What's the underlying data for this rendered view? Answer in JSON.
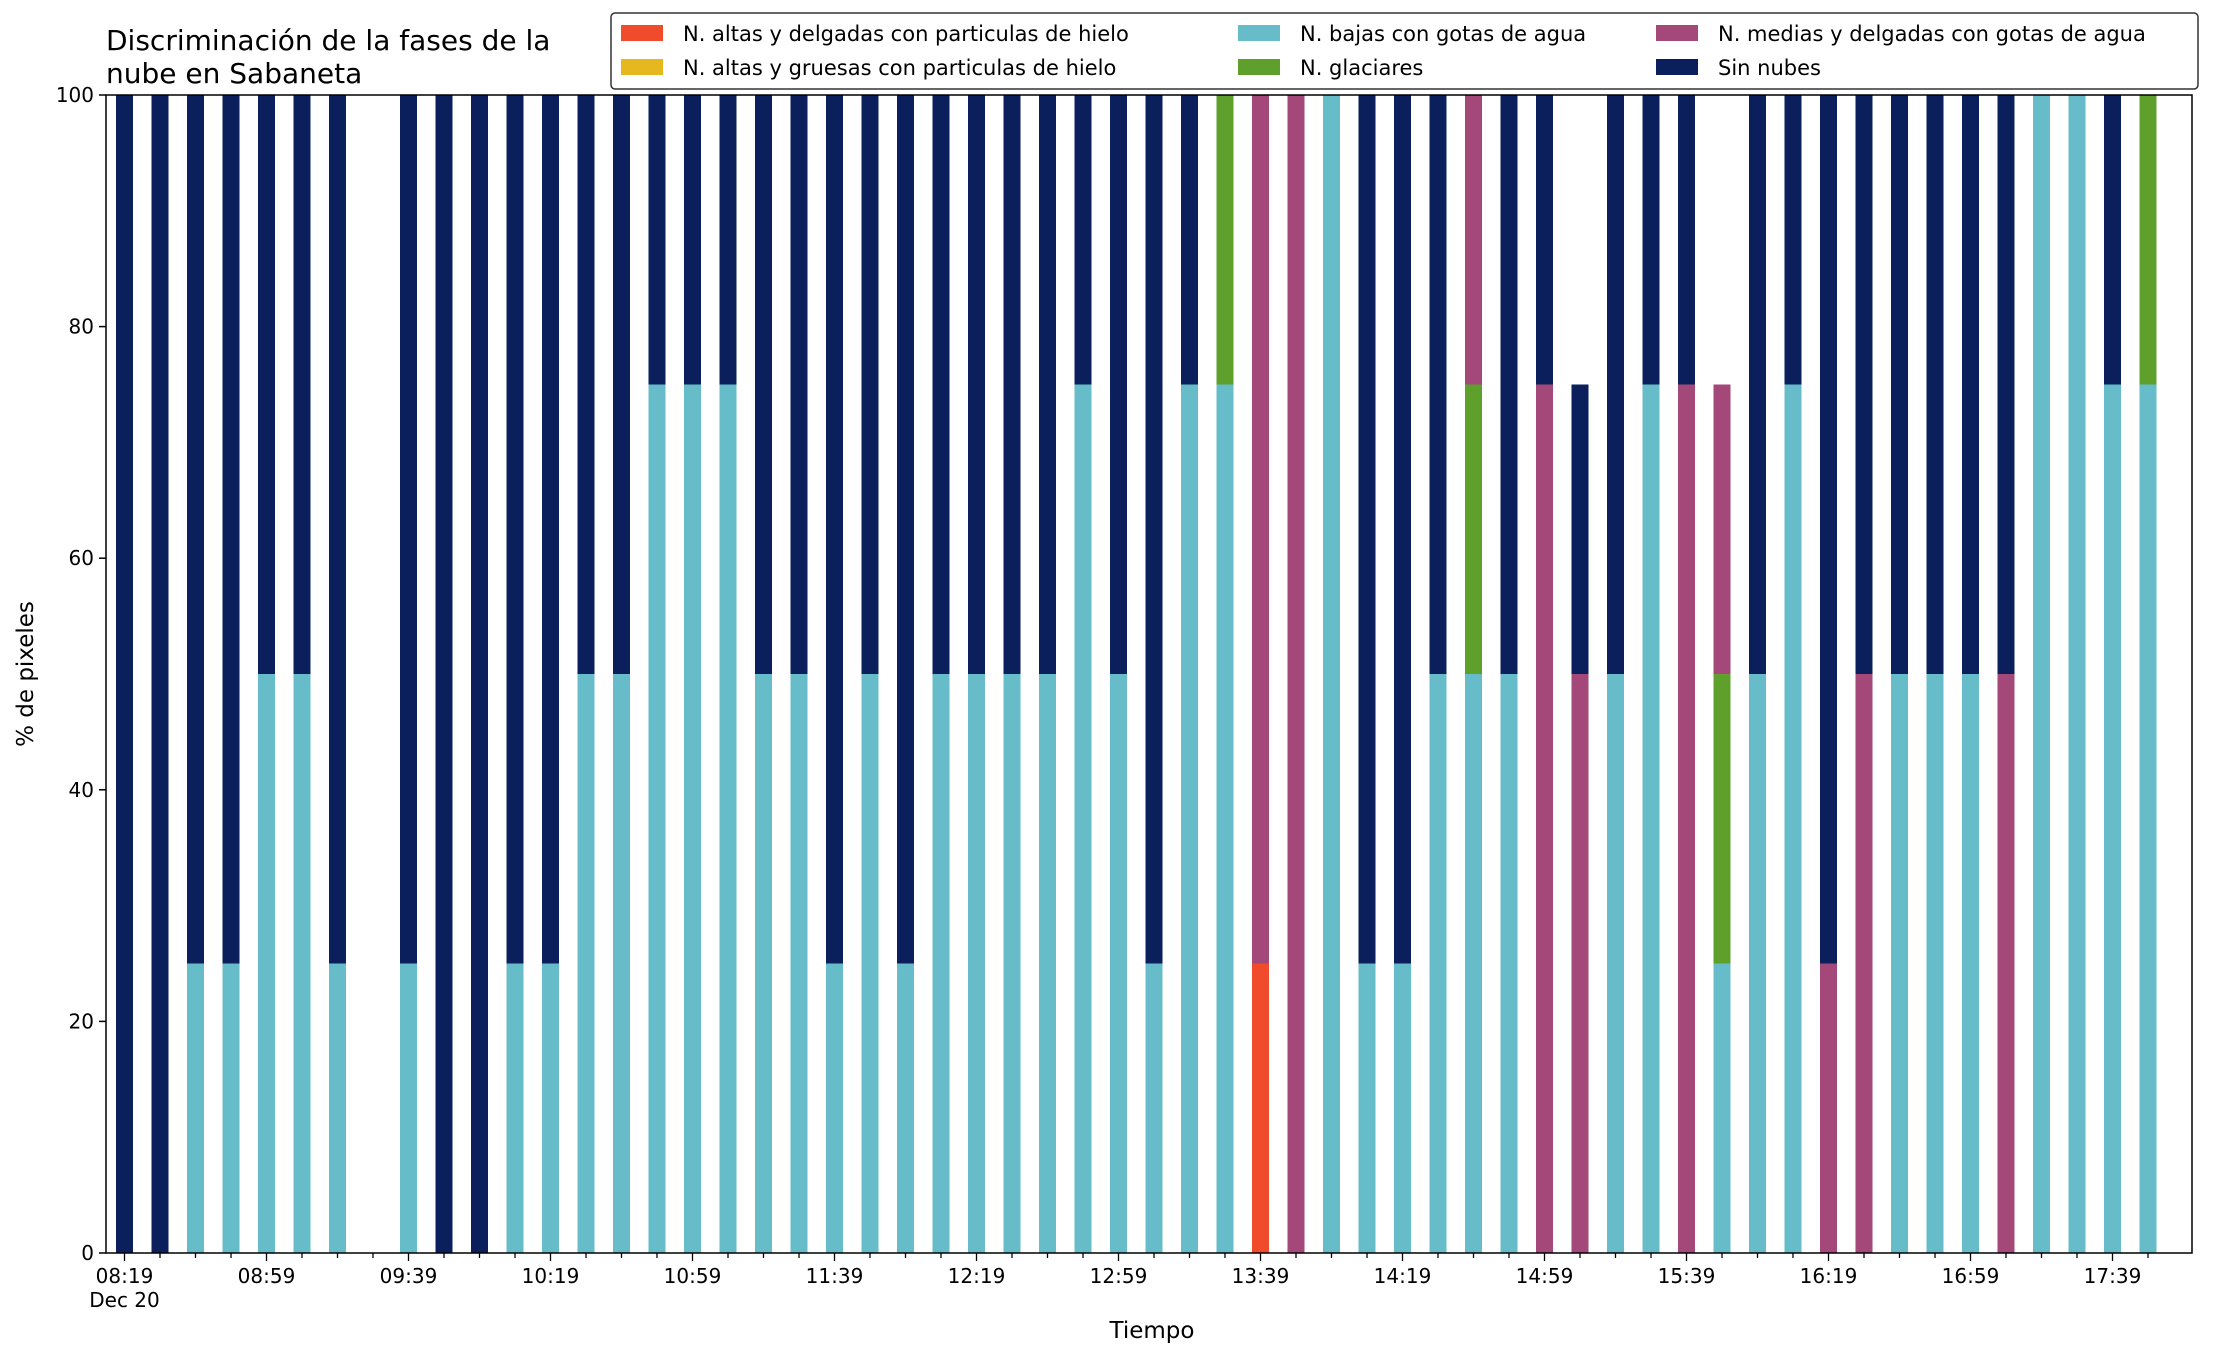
{
  "chart_data": {
    "type": "bar",
    "stacked": true,
    "title_lines": [
      "Discriminación de la fases de la",
      "nube en Sabaneta"
    ],
    "xlabel": "Tiempo",
    "ylabel": "% de pixeles",
    "ylim": [
      0,
      100
    ],
    "yticks": [
      0,
      20,
      40,
      60,
      80,
      100
    ],
    "grid": false,
    "legend": {
      "placement": "top-right",
      "columns": 3,
      "entries": [
        {
          "name": "N. altas y delgadas con particulas de hielo",
          "color": "#f04b2b"
        },
        {
          "name": "N. altas y gruesas con particulas de hielo",
          "color": "#e6b820"
        },
        {
          "name": "N. bajas con gotas de agua",
          "color": "#66bdc9"
        },
        {
          "name": "N. glaciares",
          "color": "#5fa02c"
        },
        {
          "name": "N. medias y delgadas con gotas de agua",
          "color": "#a44879"
        },
        {
          "name": "Sin nubes",
          "color": "#0a1f5c"
        }
      ]
    },
    "x_start": "08:19",
    "x_step_minutes": 10,
    "x_tick_labels": [
      "08:19",
      "08:59",
      "09:39",
      "10:19",
      "10:59",
      "11:39",
      "12:19",
      "12:59",
      "13:39",
      "14:19",
      "14:59",
      "15:39",
      "16:19",
      "16:59",
      "17:39"
    ],
    "x_date_label": "Dec 20",
    "categories": [
      "08:19",
      "08:29",
      "08:39",
      "08:49",
      "08:59",
      "09:09",
      "09:19",
      "09:29",
      "09:39",
      "09:49",
      "09:59",
      "10:09",
      "10:19",
      "10:29",
      "10:39",
      "10:49",
      "10:59",
      "11:09",
      "11:19",
      "11:29",
      "11:39",
      "11:49",
      "11:59",
      "12:09",
      "12:19",
      "12:29",
      "12:39",
      "12:49",
      "12:59",
      "13:09",
      "13:19",
      "13:29",
      "13:39",
      "13:49",
      "13:59",
      "14:09",
      "14:19",
      "14:29",
      "14:39",
      "14:49",
      "14:59",
      "15:09",
      "15:19",
      "15:29",
      "15:39",
      "15:49",
      "15:59",
      "16:09",
      "16:19",
      "16:29",
      "16:39",
      "16:49",
      "16:59",
      "17:09",
      "17:19",
      "17:29",
      "17:39",
      "17:49"
    ],
    "series": [
      {
        "name": "N. altas y delgadas con particulas de hielo",
        "color": "#f04b2b",
        "values": [
          0,
          0,
          0,
          0,
          0,
          0,
          0,
          0,
          0,
          0,
          0,
          0,
          0,
          0,
          0,
          0,
          0,
          0,
          0,
          0,
          0,
          0,
          0,
          0,
          0,
          0,
          0,
          0,
          0,
          0,
          0,
          0,
          25,
          0,
          0,
          0,
          0,
          0,
          0,
          0,
          0,
          0,
          0,
          0,
          0,
          0,
          0,
          0,
          0,
          0,
          0,
          0,
          0,
          0,
          0,
          0,
          0,
          0
        ]
      },
      {
        "name": "N. altas y gruesas con particulas de hielo",
        "color": "#e6b820",
        "values": [
          0,
          0,
          0,
          0,
          0,
          0,
          0,
          0,
          0,
          0,
          0,
          0,
          0,
          0,
          0,
          0,
          0,
          0,
          0,
          0,
          0,
          0,
          0,
          0,
          0,
          0,
          0,
          0,
          0,
          0,
          0,
          0,
          0,
          0,
          0,
          0,
          0,
          0,
          0,
          0,
          0,
          0,
          0,
          0,
          0,
          0,
          0,
          0,
          0,
          0,
          0,
          0,
          0,
          0,
          0,
          0,
          0,
          0
        ]
      },
      {
        "name": "N. bajas con gotas de agua",
        "color": "#66bdc9",
        "values": [
          0,
          0,
          25,
          25,
          50,
          50,
          25,
          0,
          25,
          0,
          0,
          25,
          25,
          50,
          50,
          75,
          75,
          75,
          50,
          50,
          25,
          50,
          25,
          50,
          50,
          50,
          50,
          75,
          50,
          25,
          75,
          75,
          0,
          0,
          100,
          25,
          25,
          50,
          50,
          50,
          0,
          0,
          50,
          75,
          0,
          25,
          50,
          75,
          0,
          0,
          50,
          50,
          50,
          0,
          100,
          100,
          75,
          75
        ]
      },
      {
        "name": "N. glaciares",
        "color": "#5fa02c",
        "values": [
          0,
          0,
          0,
          0,
          0,
          0,
          0,
          0,
          0,
          0,
          0,
          0,
          0,
          0,
          0,
          0,
          0,
          0,
          0,
          0,
          0,
          0,
          0,
          0,
          0,
          0,
          0,
          0,
          0,
          0,
          0,
          25,
          0,
          0,
          0,
          0,
          0,
          0,
          25,
          0,
          0,
          0,
          0,
          0,
          0,
          25,
          0,
          0,
          0,
          0,
          0,
          0,
          0,
          0,
          0,
          0,
          0,
          25
        ]
      },
      {
        "name": "N. medias y delgadas con gotas de agua",
        "color": "#a44879",
        "values": [
          0,
          0,
          0,
          0,
          0,
          0,
          0,
          0,
          0,
          0,
          0,
          0,
          0,
          0,
          0,
          0,
          0,
          0,
          0,
          0,
          0,
          0,
          0,
          0,
          0,
          0,
          0,
          0,
          0,
          0,
          0,
          0,
          75,
          100,
          0,
          0,
          0,
          0,
          25,
          0,
          75,
          50,
          0,
          0,
          75,
          25,
          0,
          0,
          25,
          50,
          0,
          0,
          0,
          50,
          0,
          0,
          0,
          0
        ]
      },
      {
        "name": "Sin nubes",
        "color": "#0a1f5c",
        "values": [
          100,
          100,
          75,
          75,
          50,
          50,
          75,
          0,
          75,
          100,
          100,
          75,
          75,
          50,
          50,
          25,
          25,
          25,
          50,
          50,
          75,
          50,
          75,
          50,
          50,
          50,
          50,
          25,
          50,
          75,
          25,
          0,
          0,
          0,
          0,
          75,
          75,
          50,
          0,
          50,
          25,
          25,
          50,
          25,
          25,
          0,
          50,
          25,
          75,
          50,
          50,
          50,
          50,
          50,
          0,
          0,
          25,
          0
        ]
      }
    ]
  }
}
